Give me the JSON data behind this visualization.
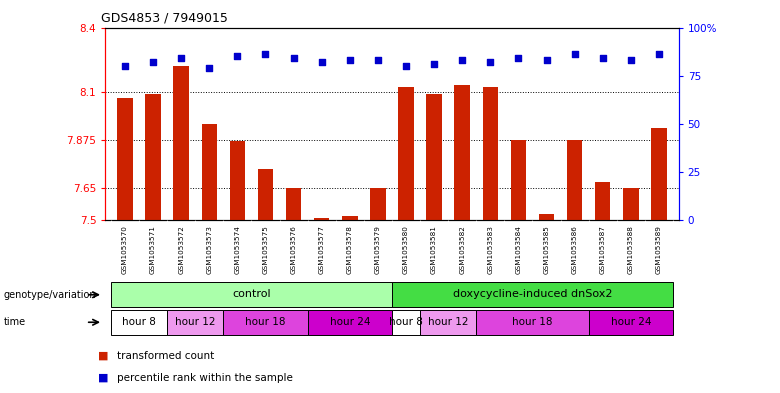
{
  "title": "GDS4853 / 7949015",
  "samples": [
    "GSM1053570",
    "GSM1053571",
    "GSM1053572",
    "GSM1053573",
    "GSM1053574",
    "GSM1053575",
    "GSM1053576",
    "GSM1053577",
    "GSM1053578",
    "GSM1053579",
    "GSM1053580",
    "GSM1053581",
    "GSM1053582",
    "GSM1053583",
    "GSM1053584",
    "GSM1053585",
    "GSM1053586",
    "GSM1053587",
    "GSM1053588",
    "GSM1053589"
  ],
  "red_values": [
    8.07,
    8.09,
    8.22,
    7.95,
    7.87,
    7.74,
    7.65,
    7.51,
    7.52,
    7.65,
    8.12,
    8.09,
    8.13,
    8.12,
    7.875,
    7.53,
    7.875,
    7.68,
    7.65,
    7.93
  ],
  "blue_values": [
    80,
    82,
    84,
    79,
    85,
    86,
    84,
    82,
    83,
    83,
    80,
    81,
    83,
    82,
    84,
    83,
    86,
    84,
    83,
    86
  ],
  "ylim_left": [
    7.5,
    8.4
  ],
  "ylim_right": [
    0,
    100
  ],
  "yticks_left": [
    7.5,
    7.65,
    7.875,
    8.1,
    8.4
  ],
  "yticks_right": [
    0,
    25,
    50,
    75,
    100
  ],
  "ytick_labels_left": [
    "7.5",
    "7.65",
    "7.875",
    "8.1",
    "8.4"
  ],
  "ytick_labels_right": [
    "0",
    "25",
    "50",
    "75",
    "100%"
  ],
  "bar_color": "#cc2200",
  "dot_color": "#0000cc",
  "bg_color": "#ffffff",
  "legend_red": "transformed count",
  "legend_blue": "percentile rank within the sample",
  "genotype_label": "genotype/variation",
  "time_label": "time",
  "genotype_groups": [
    {
      "label": "control",
      "start": 0,
      "end": 10,
      "color": "#aaffaa"
    },
    {
      "label": "doxycycline-induced dnSox2",
      "start": 10,
      "end": 20,
      "color": "#44dd44"
    }
  ],
  "time_groups": [
    {
      "label": "hour 8",
      "start": 0,
      "end": 2,
      "color": "#ffffff"
    },
    {
      "label": "hour 12",
      "start": 2,
      "end": 4,
      "color": "#ee99ee"
    },
    {
      "label": "hour 18",
      "start": 4,
      "end": 7,
      "color": "#dd44dd"
    },
    {
      "label": "hour 24",
      "start": 7,
      "end": 10,
      "color": "#cc00cc"
    },
    {
      "label": "hour 8",
      "start": 10,
      "end": 11,
      "color": "#ffffff"
    },
    {
      "label": "hour 12",
      "start": 11,
      "end": 13,
      "color": "#ee99ee"
    },
    {
      "label": "hour 18",
      "start": 13,
      "end": 17,
      "color": "#dd44dd"
    },
    {
      "label": "hour 24",
      "start": 17,
      "end": 20,
      "color": "#cc00cc"
    }
  ]
}
